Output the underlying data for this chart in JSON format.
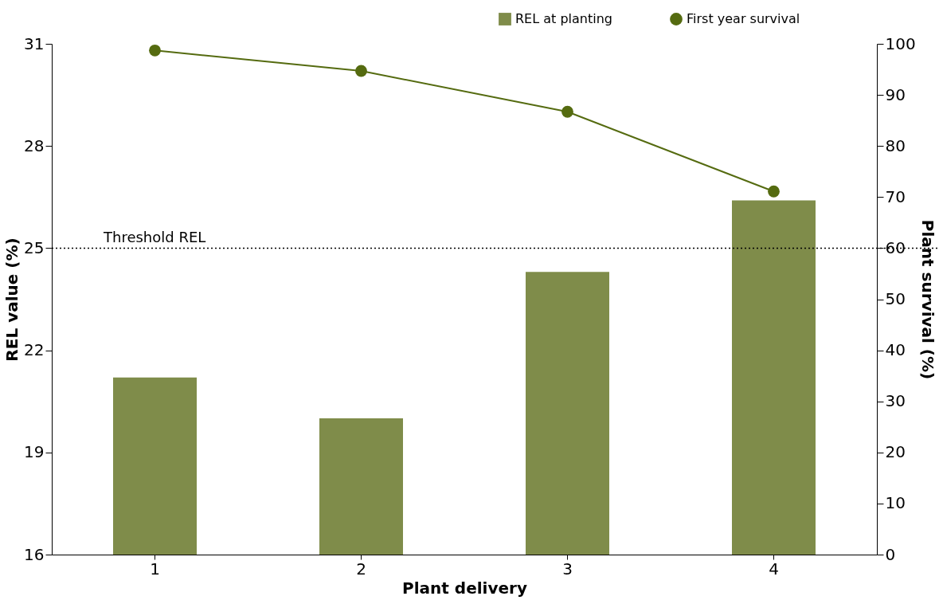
{
  "chart_data": {
    "type": "bar",
    "xlabel": "Plant delivery",
    "ylabel": "REL value (%)",
    "y2label": "Plant survival (%)",
    "categories": [
      "1",
      "2",
      "3",
      "4"
    ],
    "series": [
      {
        "name": "REL at planting",
        "color": "#7f8c4a",
        "values": [
          21.2,
          20.0,
          24.3,
          26.4
        ]
      },
      {
        "name": "First year survival",
        "type": "line",
        "axis": "y2",
        "color": "#556b10",
        "marker": "circle",
        "line_style": "solid",
        "values": [
          98.7,
          94.7,
          86.7,
          71.1
        ]
      }
    ],
    "ylim": [
      16,
      31
    ],
    "yticks": [
      16,
      19,
      22,
      25,
      28,
      31
    ],
    "y2lim": [
      0,
      100
    ],
    "y2ticks": [
      0,
      10,
      20,
      30,
      40,
      50,
      60,
      70,
      80,
      90,
      100
    ],
    "ref_lines": [
      {
        "axis": "y",
        "value": 25,
        "label": "Threshold REL",
        "color": "#000000",
        "line_style": "dotted"
      }
    ],
    "grid": false,
    "legend": "top right"
  }
}
